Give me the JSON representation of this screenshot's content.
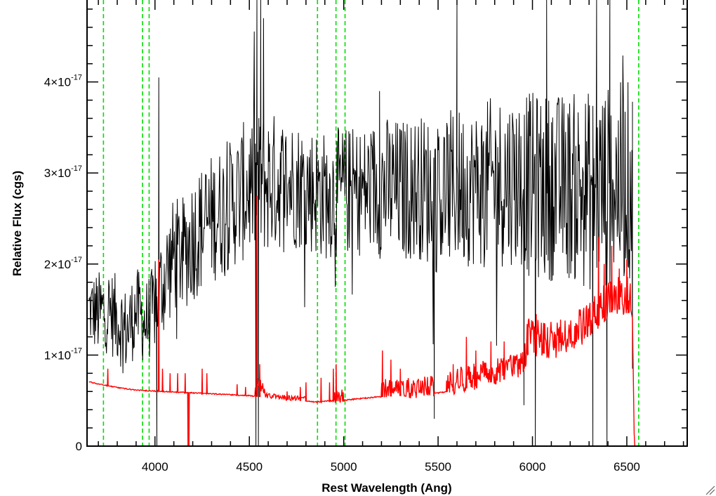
{
  "chart_data": {
    "type": "line",
    "title": "",
    "xlabel": "Rest Wavelength (Ang)",
    "ylabel": "Relative Flux (cgs)",
    "xlim": [
      3640,
      6820
    ],
    "ylim": [
      0,
      4.9e-17
    ],
    "x_ticks": [
      4000,
      4500,
      5000,
      5500,
      6000,
      6500
    ],
    "x_tick_labels": [
      "4000",
      "4500",
      "5000",
      "5500",
      "6000",
      "6500"
    ],
    "y_ticks": [
      0,
      1e-17,
      2e-17,
      3e-17,
      4e-17
    ],
    "y_tick_labels": [
      {
        "mantissa": "0",
        "exponent": ""
      },
      {
        "mantissa": "1×10",
        "exponent": "-17"
      },
      {
        "mantissa": "2×10",
        "exponent": "-17"
      },
      {
        "mantissa": "3×10",
        "exponent": "-17"
      },
      {
        "mantissa": "4×10",
        "exponent": "-17"
      }
    ],
    "grid": false,
    "reference_lines": {
      "style": "dashed",
      "color": "#00dd00",
      "x": [
        3727,
        3934,
        3969,
        4861,
        4959,
        5007,
        6563
      ]
    },
    "series": [
      {
        "color": "#000000",
        "kind": "noisy_spectrum",
        "x": [
          3650,
          3700,
          3750,
          3800,
          3850,
          3900,
          3950,
          3990,
          4050,
          4100,
          4150,
          4200,
          4300,
          4400,
          4500,
          4600,
          4700,
          4800,
          4900,
          5000,
          5100,
          5200,
          5300,
          5400,
          5500,
          5600,
          5700,
          5800,
          5900,
          6000,
          6100,
          6200,
          6300,
          6400,
          6500,
          6530
        ],
        "y": [
          1.5e-17,
          1.45e-17,
          1.5e-17,
          1.4e-17,
          1.25e-17,
          1.5e-17,
          1.35e-17,
          1.5e-17,
          1.85e-17,
          2.1e-17,
          2.1e-17,
          2.3e-17,
          2.5e-17,
          2.65e-17,
          2.85e-17,
          2.9e-17,
          2.9e-17,
          2.85e-17,
          2.75e-17,
          2.8e-17,
          2.8e-17,
          2.85e-17,
          2.8e-17,
          2.85e-17,
          2.75e-17,
          2.85e-17,
          2.85e-17,
          2.9e-17,
          2.95e-17,
          2.85e-17,
          2.85e-17,
          2.85e-17,
          2.8e-17,
          2.85e-17,
          2.9e-17,
          2.9e-17
        ],
        "noise": [
          2.5e-18,
          3e-18,
          3e-18,
          3e-18,
          3e-18,
          3e-18,
          3e-18,
          3e-18,
          4e-18,
          4e-18,
          4e-18,
          4.5e-18,
          4.5e-18,
          4.5e-18,
          5e-18,
          5e-18,
          4.5e-18,
          4.5e-18,
          4.5e-18,
          4.5e-18,
          4.5e-18,
          5e-18,
          5e-18,
          5e-18,
          5.5e-18,
          5.5e-18,
          5.5e-18,
          6e-18,
          6e-18,
          6.5e-18,
          6.5e-18,
          6.5e-18,
          7e-18,
          7e-18,
          7e-18,
          7e-18
        ],
        "spikes": [
          {
            "x": 4010,
            "y": 0
          },
          {
            "x": 4020,
            "y": 4.05e-17
          },
          {
            "x": 4535,
            "y": 0
          },
          {
            "x": 4540,
            "y": 4.9e-17
          },
          {
            "x": 4548,
            "y": 0
          },
          {
            "x": 4560,
            "y": 4.9e-17
          },
          {
            "x": 4575,
            "y": 4.7e-17
          },
          {
            "x": 4955,
            "y": 1.75e-17
          },
          {
            "x": 5190,
            "y": 3.9e-17
          },
          {
            "x": 5480,
            "y": 3e-18
          },
          {
            "x": 5600,
            "y": 4.9e-17
          },
          {
            "x": 5955,
            "y": 4.5e-18
          },
          {
            "x": 6015,
            "y": 0
          },
          {
            "x": 6075,
            "y": 4.9e-17
          },
          {
            "x": 6320,
            "y": 0
          },
          {
            "x": 6340,
            "y": 4.9e-17
          },
          {
            "x": 6395,
            "y": 0
          },
          {
            "x": 6410,
            "y": 4.9e-17
          },
          {
            "x": 6530,
            "y": 8.5e-18
          }
        ]
      },
      {
        "color": "#ff0000",
        "kind": "error_spectrum",
        "x": [
          3650,
          3700,
          3800,
          3900,
          4000,
          4100,
          4200,
          4300,
          4400,
          4500,
          4600,
          4700,
          4800,
          4850,
          4900,
          5000,
          5100,
          5200,
          5300,
          5400,
          5500,
          5600,
          5700,
          5800,
          5900,
          5950,
          5980,
          6100,
          6200,
          6250,
          6300,
          6350,
          6400,
          6450,
          6500,
          6520,
          6530,
          6540,
          6820
        ],
        "y": [
          7e-18,
          6.8e-18,
          6.4e-18,
          6.1e-18,
          6e-18,
          5.9e-18,
          5.8e-18,
          5.7e-18,
          5.6e-18,
          5.5e-18,
          5.3e-18,
          5.1e-18,
          4.9e-18,
          4.8e-18,
          4.9e-18,
          5e-18,
          5.2e-18,
          5.4e-18,
          5.5e-18,
          5.6e-18,
          5.8e-18,
          6.1e-18,
          6.6e-18,
          7.1e-18,
          7.5e-18,
          8e-18,
          1.05e-17,
          1e-17,
          1.1e-17,
          1.15e-17,
          1.2e-17,
          1.35e-17,
          1.45e-17,
          1.5e-17,
          1.5e-17,
          1.5e-17,
          1.4e-17,
          0,
          0
        ],
        "noise_ranges": [
          {
            "from": 4530,
            "to": 4580,
            "amp": 1.5e-18
          },
          {
            "from": 4580,
            "to": 4800,
            "amp": 4e-19
          },
          {
            "from": 4950,
            "to": 5000,
            "amp": 1e-18
          },
          {
            "from": 5200,
            "to": 5480,
            "amp": 1.6e-18
          },
          {
            "from": 5550,
            "to": 5950,
            "amp": 2e-18
          },
          {
            "from": 5960,
            "to": 6520,
            "amp": 2.8e-18
          }
        ],
        "spikes": [
          {
            "x": 3750,
            "y": 8.5e-18
          },
          {
            "x": 4020,
            "y": 2.05e-17
          },
          {
            "x": 4040,
            "y": 8.5e-18
          },
          {
            "x": 4080,
            "y": 8e-18
          },
          {
            "x": 4120,
            "y": 8e-18
          },
          {
            "x": 4160,
            "y": 8e-18
          },
          {
            "x": 4175,
            "y": 0
          },
          {
            "x": 4180,
            "y": 0
          },
          {
            "x": 4250,
            "y": 8.5e-18
          },
          {
            "x": 4275,
            "y": 8e-18
          },
          {
            "x": 4435,
            "y": 6.8e-18
          },
          {
            "x": 4480,
            "y": 6.5e-18
          },
          {
            "x": 4540,
            "y": 2.75e-17
          },
          {
            "x": 4555,
            "y": 9e-18
          },
          {
            "x": 4700,
            "y": 6e-18
          },
          {
            "x": 4770,
            "y": 6.5e-18
          },
          {
            "x": 4800,
            "y": 7e-18
          },
          {
            "x": 4880,
            "y": 7.5e-18
          },
          {
            "x": 4925,
            "y": 7e-18
          },
          {
            "x": 4945,
            "y": 8.5e-18
          },
          {
            "x": 4960,
            "y": 9e-18
          },
          {
            "x": 5205,
            "y": 1.05e-17
          },
          {
            "x": 5250,
            "y": 9.5e-18
          },
          {
            "x": 5300,
            "y": 8.5e-18
          },
          {
            "x": 5545,
            "y": 7.2e-18
          },
          {
            "x": 5580,
            "y": 9e-18
          },
          {
            "x": 5650,
            "y": 1.2e-17
          },
          {
            "x": 5700,
            "y": 1.05e-17
          },
          {
            "x": 5780,
            "y": 1.15e-17
          },
          {
            "x": 5850,
            "y": 1.15e-17
          },
          {
            "x": 5975,
            "y": 1.25e-17
          },
          {
            "x": 6020,
            "y": 1.45e-17
          },
          {
            "x": 6060,
            "y": 1.35e-17
          },
          {
            "x": 6350,
            "y": 2.3e-17
          },
          {
            "x": 6380,
            "y": 2e-17
          },
          {
            "x": 6420,
            "y": 2.2e-17
          },
          {
            "x": 6460,
            "y": 1.95e-17
          },
          {
            "x": 6500,
            "y": 2.05e-17
          }
        ]
      }
    ]
  }
}
